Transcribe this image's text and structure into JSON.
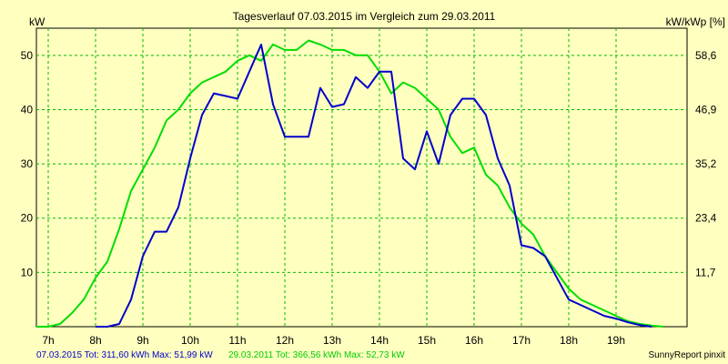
{
  "chart_data": {
    "type": "line",
    "title": "Tagesverlauf 07.03.2015 im Vergleich zum 29.03.2011",
    "ylabel_left": "kW",
    "ylabel_right": "kW/kWp [%]",
    "x_ticks": [
      "7h",
      "8h",
      "9h",
      "10h",
      "11h",
      "12h",
      "13h",
      "14h",
      "15h",
      "16h",
      "17h",
      "18h",
      "19h"
    ],
    "xlim": [
      6.75,
      20.5
    ],
    "ylim": [
      0,
      55
    ],
    "y_ticks_left": [
      "10",
      "20",
      "30",
      "40",
      "50"
    ],
    "y_ticks_right": [
      "11,7",
      "23,4",
      "35,2",
      "46,9",
      "58,6"
    ],
    "grid": true,
    "series": [
      {
        "name": "07.03.2015",
        "color": "#0000cc",
        "x": [
          8.0,
          8.25,
          8.5,
          8.75,
          9.0,
          9.25,
          9.5,
          9.75,
          10.0,
          10.25,
          10.5,
          10.75,
          11.0,
          11.25,
          11.5,
          11.75,
          12.0,
          12.25,
          12.5,
          12.75,
          13.0,
          13.25,
          13.5,
          13.75,
          14.0,
          14.25,
          14.5,
          14.75,
          15.0,
          15.25,
          15.5,
          15.75,
          16.0,
          16.25,
          16.5,
          16.75,
          17.0,
          17.25,
          17.5,
          17.75,
          18.0,
          18.25,
          18.5,
          18.75,
          19.0,
          19.25,
          19.5,
          19.75
        ],
        "values": [
          0,
          0,
          0.5,
          5,
          13,
          17.5,
          17.5,
          22,
          31,
          39,
          43,
          42.5,
          42,
          47,
          51.99,
          41,
          35,
          35,
          35,
          44,
          40.5,
          41,
          46,
          44,
          47,
          47,
          31,
          29,
          36,
          30,
          39,
          42,
          42,
          39,
          31,
          26,
          15,
          14.5,
          13,
          9,
          5,
          4,
          3,
          2,
          1.5,
          0.8,
          0.3,
          0
        ]
      },
      {
        "name": "29.03.2011",
        "color": "#00dd00",
        "x": [
          6.75,
          7.0,
          7.25,
          7.5,
          7.75,
          8.0,
          8.25,
          8.5,
          8.75,
          9.0,
          9.25,
          9.5,
          9.75,
          10.0,
          10.25,
          10.5,
          10.75,
          11.0,
          11.25,
          11.5,
          11.75,
          12.0,
          12.25,
          12.5,
          12.75,
          13.0,
          13.25,
          13.5,
          13.75,
          14.0,
          14.25,
          14.5,
          14.75,
          15.0,
          15.25,
          15.5,
          15.75,
          16.0,
          16.25,
          16.5,
          16.75,
          17.0,
          17.25,
          17.5,
          17.75,
          18.0,
          18.25,
          18.5,
          18.75,
          19.0,
          19.25,
          19.5,
          19.75,
          20.0
        ],
        "values": [
          0,
          0,
          0.5,
          2.5,
          5,
          9,
          12,
          18,
          25,
          29,
          33,
          38,
          40,
          43,
          45,
          46,
          47,
          49,
          50,
          49,
          52,
          51,
          51,
          52.73,
          52,
          51,
          51,
          50,
          50,
          47,
          43,
          45,
          44,
          42,
          40,
          35,
          32,
          33,
          28,
          26,
          22,
          19,
          17,
          13,
          10,
          7,
          5,
          4,
          3,
          2,
          1,
          0.5,
          0.2,
          0
        ]
      }
    ],
    "footer": {
      "series1_text": "07.03.2015 Tot: 311,60 kWh Max: 51,99 kW",
      "series2_text": "29.03.2011 Tot: 366,56 kWh Max: 52,73 kW",
      "brand": "SunnyReport pinxit"
    }
  }
}
